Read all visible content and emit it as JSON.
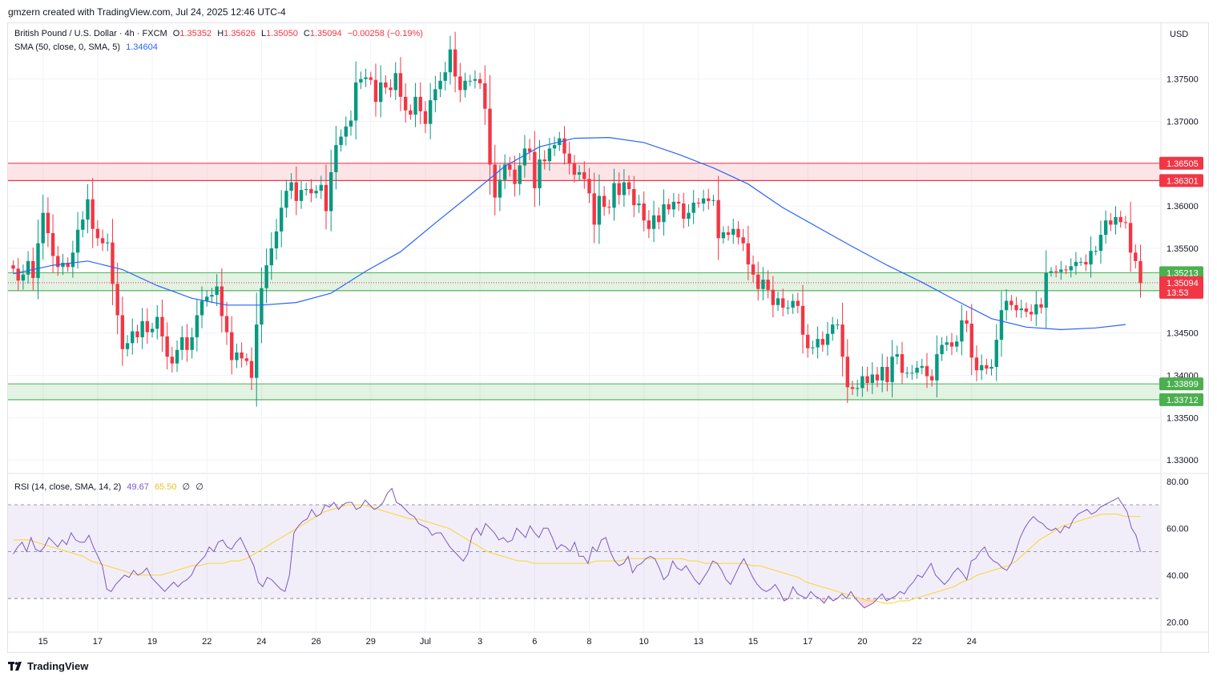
{
  "header": {
    "credit": "gmzern created with TradingView.com, Jul 24, 2025 12:46 UTC-4"
  },
  "legend": {
    "symbol": "British Pound / U.S. Dollar · 4h · FXCM",
    "o_label": "O",
    "o": "1.35352",
    "h_label": "H",
    "h": "1.35626",
    "l_label": "L",
    "l": "1.35050",
    "c_label": "C",
    "c": "1.35094",
    "change": "−0.00258 (−0.19%)",
    "sma_label": "SMA (50, close, 0, SMA, 5)",
    "sma_value": "1.34604",
    "rsi_label": "RSI (14, close, SMA, 14, 2)",
    "rsi_value": "49.67",
    "rsi_sma_value": "65.50",
    "rsi_extra1": "∅",
    "rsi_extra2": "∅"
  },
  "currency": "USD",
  "footer": {
    "brand": "TradingView",
    "logo_icon": "tradingview-logo-icon"
  },
  "colors": {
    "up": "#089981",
    "down": "#f23645",
    "sma": "#2962ff",
    "rsi": "#7e57c2",
    "rsi_sma": "#f7d94c",
    "resistance_zone": "#f23645",
    "support_zone": "#4caf50"
  },
  "chart_data": [
    {
      "type": "candlestick",
      "title": "British Pound / U.S. Dollar · 4h · FXCM",
      "ylim": [
        1.3285,
        1.3815
      ],
      "yticks": [
        "1.37500",
        "1.37000",
        "1.36500",
        "1.36000",
        "1.35500",
        "1.35000",
        "1.34500",
        "1.34000",
        "1.33500",
        "1.33000"
      ],
      "ytick_values": [
        1.375,
        1.37,
        1.365,
        1.36,
        1.355,
        1.35,
        1.345,
        1.34,
        1.335,
        1.33
      ],
      "x_tick_labels": [
        "15",
        "17",
        "19",
        "22",
        "24",
        "26",
        "29",
        "Jul",
        "3",
        "6",
        "8",
        "10",
        "13",
        "15",
        "17",
        "20",
        "22",
        "24"
      ],
      "x_tick_index": [
        6,
        17,
        28,
        39,
        50,
        61,
        72,
        83,
        94,
        105,
        116,
        127,
        138,
        149,
        160,
        171,
        182,
        193
      ],
      "closes": [
        1.3526,
        1.3512,
        1.3519,
        1.3535,
        1.3515,
        1.3556,
        1.3592,
        1.3568,
        1.3541,
        1.3528,
        1.3533,
        1.3528,
        1.3545,
        1.3572,
        1.3584,
        1.3608,
        1.3573,
        1.3562,
        1.3556,
        1.3557,
        1.3508,
        1.3471,
        1.3431,
        1.3438,
        1.3452,
        1.3445,
        1.3464,
        1.3451,
        1.3455,
        1.3469,
        1.3446,
        1.3422,
        1.3414,
        1.343,
        1.3445,
        1.343,
        1.3445,
        1.3471,
        1.3488,
        1.3493,
        1.3495,
        1.3505,
        1.347,
        1.3451,
        1.3418,
        1.3427,
        1.342,
        1.3417,
        1.3397,
        1.346,
        1.3503,
        1.353,
        1.355,
        1.357,
        1.3598,
        1.3618,
        1.3628,
        1.3606,
        1.3619,
        1.362,
        1.3615,
        1.3618,
        1.3625,
        1.3594,
        1.364,
        1.3672,
        1.3682,
        1.3694,
        1.3701,
        1.3746,
        1.375,
        1.3752,
        1.3749,
        1.3723,
        1.3746,
        1.374,
        1.3737,
        1.3757,
        1.3729,
        1.3713,
        1.3708,
        1.3729,
        1.3712,
        1.3697,
        1.3725,
        1.3738,
        1.3748,
        1.3758,
        1.3785,
        1.3753,
        1.3737,
        1.3748,
        1.3748,
        1.375,
        1.3745,
        1.3715,
        1.3649,
        1.361,
        1.3631,
        1.3649,
        1.3643,
        1.3626,
        1.3648,
        1.3668,
        1.3664,
        1.3621,
        1.3655,
        1.3653,
        1.3668,
        1.3672,
        1.368,
        1.3662,
        1.365,
        1.3637,
        1.364,
        1.3632,
        1.3615,
        1.3578,
        1.3612,
        1.3599,
        1.3598,
        1.3627,
        1.3613,
        1.3628,
        1.362,
        1.3601,
        1.3603,
        1.3583,
        1.3573,
        1.3589,
        1.3581,
        1.3602,
        1.3596,
        1.3605,
        1.3603,
        1.3585,
        1.3592,
        1.3604,
        1.3603,
        1.3609,
        1.3606,
        1.3607,
        1.3562,
        1.3569,
        1.3566,
        1.3573,
        1.3563,
        1.3556,
        1.3531,
        1.3519,
        1.3502,
        1.3513,
        1.3501,
        1.3483,
        1.3491,
        1.348,
        1.348,
        1.3488,
        1.3482,
        1.3448,
        1.3432,
        1.3433,
        1.3443,
        1.3436,
        1.3449,
        1.346,
        1.346,
        1.3422,
        1.3386,
        1.3384,
        1.3385,
        1.3399,
        1.3391,
        1.3401,
        1.3394,
        1.341,
        1.3392,
        1.3422,
        1.3425,
        1.3403,
        1.3403,
        1.3403,
        1.3409,
        1.3411,
        1.3399,
        1.3394,
        1.3425,
        1.3436,
        1.3439,
        1.3434,
        1.344,
        1.3465,
        1.3461,
        1.3421,
        1.3406,
        1.3412,
        1.3408,
        1.341,
        1.3442,
        1.3477,
        1.3488,
        1.3483,
        1.3477,
        1.3479,
        1.3475,
        1.3472,
        1.3484,
        1.348,
        1.3521,
        1.3523,
        1.3522,
        1.3525,
        1.3524,
        1.3529,
        1.3534,
        1.3534,
        1.3531,
        1.3547,
        1.3547,
        1.3566,
        1.3583,
        1.3578,
        1.3587,
        1.3581,
        1.358,
        1.3545,
        1.3535,
        1.3509
      ],
      "sma50": [
        [
          0,
          1.352
        ],
        [
          8,
          1.353
        ],
        [
          15,
          1.3535
        ],
        [
          22,
          1.3525
        ],
        [
          29,
          1.3506
        ],
        [
          36,
          1.3491
        ],
        [
          43,
          1.3483
        ],
        [
          50,
          1.3483
        ],
        [
          57,
          1.3486
        ],
        [
          64,
          1.3497
        ],
        [
          71,
          1.3523
        ],
        [
          78,
          1.3546
        ],
        [
          85,
          1.358
        ],
        [
          92,
          1.3613
        ],
        [
          99,
          1.3647
        ],
        [
          106,
          1.367
        ],
        [
          113,
          1.368
        ],
        [
          120,
          1.3681
        ],
        [
          127,
          1.3675
        ],
        [
          134,
          1.3661
        ],
        [
          141,
          1.3645
        ],
        [
          148,
          1.3626
        ],
        [
          155,
          1.3598
        ],
        [
          162,
          1.3575
        ],
        [
          169,
          1.3552
        ],
        [
          176,
          1.353
        ],
        [
          183,
          1.351
        ],
        [
          190,
          1.3488
        ],
        [
          197,
          1.3467
        ],
        [
          204,
          1.3457
        ],
        [
          211,
          1.3454
        ],
        [
          218,
          1.3456
        ],
        [
          224,
          1.346
        ]
      ],
      "zones": [
        {
          "label": "1.36505",
          "low": 1.36301,
          "high": 1.36505,
          "color": "red"
        },
        {
          "label": "1.35213",
          "low": 1.35,
          "high": 1.35213,
          "color": "green"
        },
        {
          "label": "1.33899",
          "low": 1.33712,
          "high": 1.33899,
          "color": "green"
        }
      ],
      "price_labels": [
        {
          "text": "1.36505",
          "value": 1.36505,
          "color": "#f23645"
        },
        {
          "text": "1.36301",
          "value": 1.36301,
          "color": "#f23645"
        },
        {
          "text": "1.35213",
          "value": 1.35213,
          "color": "#4caf50"
        },
        {
          "text": "1.35000",
          "value": 1.35,
          "color": "#4caf50"
        },
        {
          "text": "1.33899",
          "value": 1.33899,
          "color": "#4caf50"
        },
        {
          "text": "1.33712",
          "value": 1.33712,
          "color": "#4caf50"
        }
      ],
      "last_price": {
        "text": "1.35094",
        "countdown": "13:53",
        "value": 1.35094
      }
    },
    {
      "type": "line",
      "title": "RSI (14, close, SMA, 14, 2)",
      "ylim": [
        16,
        83
      ],
      "yticks": [
        "80.00",
        "60.00",
        "40.00",
        "20.00"
      ],
      "ytick_values": [
        80,
        60,
        40,
        20
      ],
      "bands": {
        "upper": 70,
        "middle": 50,
        "lower": 30
      },
      "series": [
        {
          "name": "RSI",
          "values": [
            49,
            52,
            54,
            50,
            56,
            51,
            50,
            52,
            56,
            54,
            52,
            55,
            53,
            58,
            55,
            54,
            54,
            57,
            52,
            48,
            44,
            34,
            33,
            36,
            38,
            40,
            39,
            42,
            40,
            41,
            43,
            39,
            37,
            35,
            33,
            35,
            37,
            35,
            37,
            38,
            40,
            44,
            46,
            48,
            52,
            50,
            54,
            55,
            52,
            51,
            54,
            56,
            52,
            48,
            44,
            37,
            35,
            39,
            38,
            36,
            34,
            33,
            40,
            58,
            61,
            63,
            64,
            68,
            65,
            66,
            70,
            69,
            71,
            68,
            70,
            71,
            71,
            68,
            69,
            72,
            70,
            68,
            69,
            71,
            75,
            77,
            71,
            70,
            68,
            66,
            65,
            62,
            61,
            60,
            57,
            58,
            58,
            55,
            52,
            50,
            48,
            46,
            49,
            57,
            60,
            57,
            62,
            60,
            58,
            55,
            56,
            54,
            55,
            60,
            58,
            56,
            61,
            58,
            56,
            60,
            60,
            56,
            51,
            53,
            52,
            50,
            54,
            48,
            48,
            45,
            52,
            50,
            55,
            56,
            50,
            46,
            44,
            45,
            48,
            41,
            44,
            45,
            47,
            48,
            47,
            43,
            38,
            40,
            46,
            43,
            42,
            44,
            41,
            38,
            36,
            39,
            42,
            46,
            45,
            42,
            38,
            36,
            40,
            44,
            47,
            43,
            39,
            36,
            34,
            33,
            34,
            36,
            33,
            29,
            30,
            35,
            32,
            31,
            30,
            33,
            31,
            30,
            28,
            31,
            29,
            30,
            32,
            30,
            33,
            30,
            28,
            26,
            27,
            28,
            30,
            32,
            29,
            30,
            31,
            33,
            32,
            35,
            37,
            40,
            39,
            42,
            45,
            40,
            38,
            36,
            38,
            41,
            43,
            41,
            38,
            46,
            47,
            50,
            52,
            48,
            46,
            45,
            43,
            42,
            45,
            50,
            56,
            60,
            63,
            65,
            63,
            62,
            60,
            59,
            60,
            58,
            61,
            60,
            64,
            66,
            67,
            68,
            66,
            67,
            69,
            70,
            71,
            72,
            73,
            70,
            67,
            60,
            57,
            50
          ]
        },
        {
          "name": "SMA",
          "values": [
            55,
            55,
            55,
            54,
            53,
            52,
            51,
            50,
            49,
            48,
            46,
            45,
            44,
            43,
            42,
            41,
            40,
            40,
            40,
            40,
            41,
            42,
            43,
            44,
            44,
            45,
            45,
            45,
            46,
            46,
            47,
            49,
            51,
            53,
            55,
            57,
            59,
            61,
            63,
            65,
            67,
            68,
            69,
            70,
            70,
            70,
            69,
            68,
            67,
            66,
            65,
            64,
            64,
            63,
            62,
            61,
            60,
            58,
            56,
            54,
            52,
            50,
            49,
            48,
            47,
            46,
            46,
            45,
            45,
            45,
            45,
            45,
            45,
            45,
            45,
            46,
            46,
            46,
            46,
            47,
            47,
            47,
            47,
            47,
            47,
            47,
            47,
            46,
            46,
            45,
            45,
            45,
            45,
            45,
            45,
            44,
            44,
            43,
            42,
            41,
            40,
            39,
            37,
            36,
            35,
            34,
            33,
            32,
            31,
            30,
            29,
            29,
            28,
            28,
            29,
            29,
            30,
            31,
            32,
            33,
            34,
            35,
            37,
            38,
            40,
            41,
            42,
            43,
            44,
            46,
            49,
            52,
            55,
            57,
            59,
            61,
            62,
            63,
            64,
            65,
            66,
            66,
            66,
            65,
            65,
            65
          ]
        }
      ],
      "x_tick_labels": [
        "15",
        "17",
        "19",
        "22",
        "24",
        "26",
        "29",
        "Jul",
        "3",
        "6",
        "8",
        "10",
        "13",
        "15",
        "17",
        "20",
        "22",
        "24"
      ]
    }
  ]
}
